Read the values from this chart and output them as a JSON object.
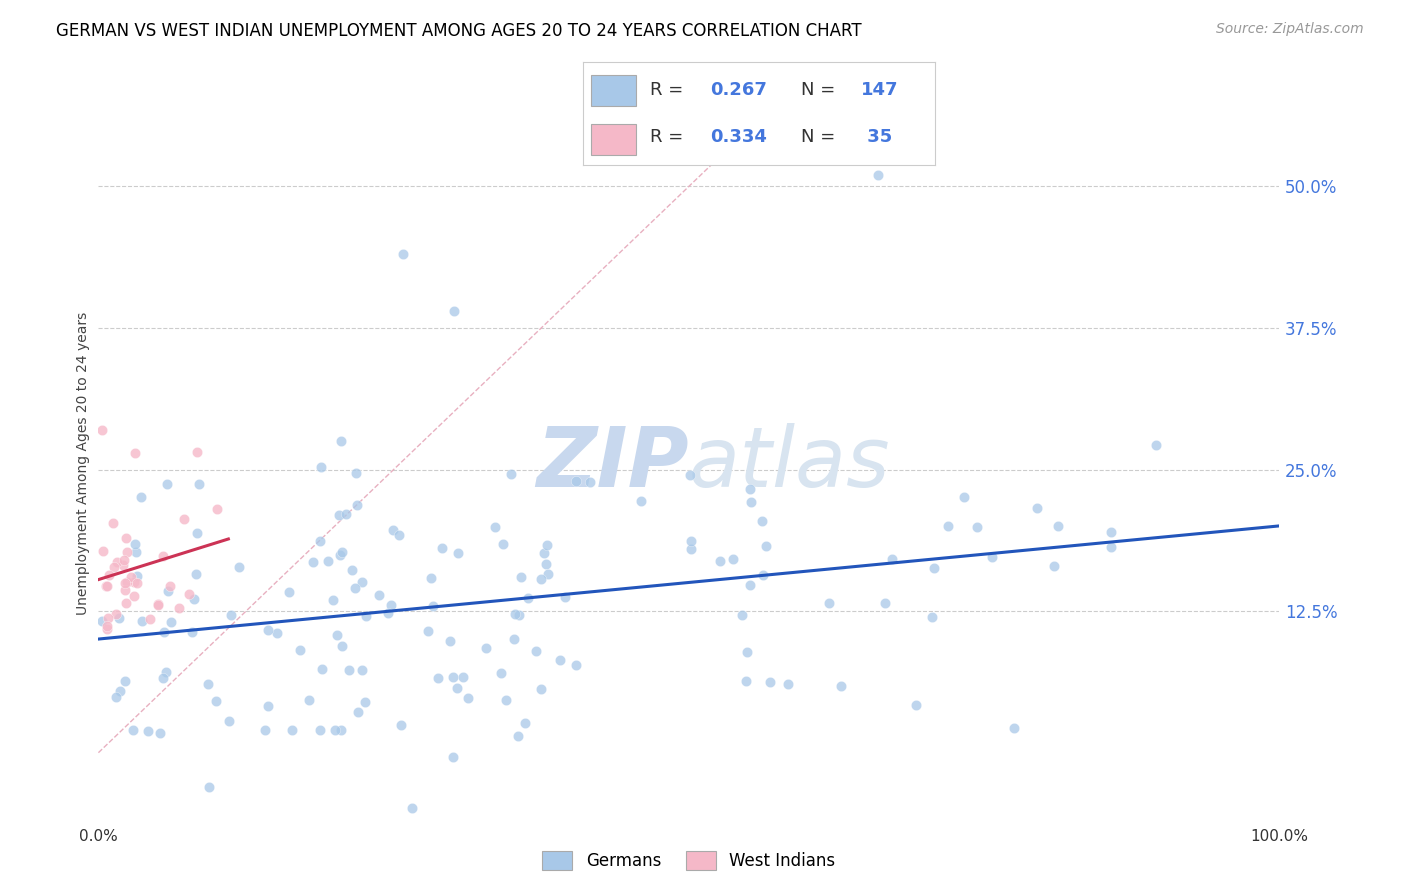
{
  "title": "GERMAN VS WEST INDIAN UNEMPLOYMENT AMONG AGES 20 TO 24 YEARS CORRELATION CHART",
  "source": "Source: ZipAtlas.com",
  "ylabel": "Unemployment Among Ages 20 to 24 years",
  "xlim": [
    0,
    1.0
  ],
  "ylim": [
    -0.06,
    0.57
  ],
  "ytick_positions": [
    0.125,
    0.25,
    0.375,
    0.5
  ],
  "ytick_labels": [
    "12.5%",
    "25.0%",
    "37.5%",
    "50.0%"
  ],
  "blue_color": "#a8c8e8",
  "pink_color": "#f5b8c8",
  "blue_line_color": "#2255bb",
  "pink_line_color": "#cc3355",
  "ref_line_color": "#e8c0cc",
  "watermark_color": "#dde8f5",
  "legend_R_color": "#4477dd",
  "title_fontsize": 12,
  "axis_fontsize": 10,
  "tick_fontsize": 11,
  "source_fontsize": 10,
  "blue_R": 0.267,
  "blue_N": 147,
  "pink_R": 0.334,
  "pink_N": 35,
  "blue_scatter_seed": 12,
  "pink_scatter_seed": 55
}
